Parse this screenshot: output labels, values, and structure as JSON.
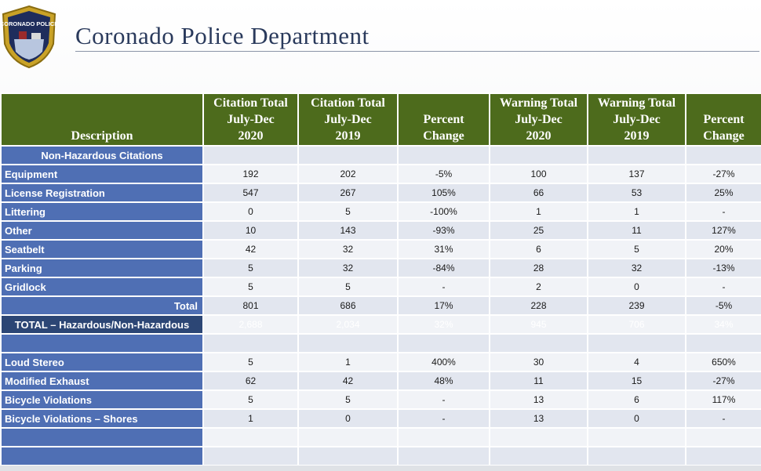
{
  "header": {
    "badge_text": "CORONADO POLICE",
    "title": "Coronado Police Department"
  },
  "table": {
    "columns": [
      {
        "lines": [
          "Description"
        ]
      },
      {
        "lines": [
          "Citation Total",
          "July-Dec",
          "2020"
        ]
      },
      {
        "lines": [
          "Citation Total",
          "July-Dec",
          "2019"
        ]
      },
      {
        "lines": [
          "Percent",
          "Change"
        ]
      },
      {
        "lines": [
          "Warning Total",
          "July-Dec",
          "2020"
        ]
      },
      {
        "lines": [
          "Warning Total",
          "July-Dec",
          "2019"
        ]
      },
      {
        "lines": [
          "Percent",
          "Change"
        ]
      }
    ],
    "rows": [
      {
        "label": "Non-Hazardous Citations",
        "align": "center",
        "cells": [
          "",
          "",
          "",
          "",
          "",
          ""
        ]
      },
      {
        "label": "Equipment",
        "cells": [
          "192",
          "202",
          "-5%",
          "100",
          "137",
          "-27%"
        ]
      },
      {
        "label": "License Registration",
        "cells": [
          "547",
          "267",
          "105%",
          "66",
          "53",
          "25%"
        ]
      },
      {
        "label": "Littering",
        "cells": [
          "0",
          "5",
          "-100%",
          "1",
          "1",
          "-"
        ]
      },
      {
        "label": "Other",
        "cells": [
          "10",
          "143",
          "-93%",
          "25",
          "11",
          "127%"
        ]
      },
      {
        "label": "Seatbelt",
        "cells": [
          "42",
          "32",
          "31%",
          "6",
          "5",
          "20%"
        ]
      },
      {
        "label": "Parking",
        "cells": [
          "5",
          "32",
          "-84%",
          "28",
          "32",
          "-13%"
        ]
      },
      {
        "label": "Gridlock",
        "cells": [
          "5",
          "5",
          "-",
          "2",
          "0",
          "-"
        ]
      },
      {
        "label": "Total",
        "align": "right",
        "cells": [
          "801",
          "686",
          "17%",
          "228",
          "239",
          "-5%"
        ]
      },
      {
        "label": "TOTAL – Hazardous/Non-Hazardous",
        "align": "center",
        "grand": true,
        "cells": [
          "2,688",
          "2,034",
          "32%",
          "945",
          "706",
          "34%"
        ]
      },
      {
        "label": "",
        "cells": [
          "",
          "",
          "",
          "",
          "",
          ""
        ]
      },
      {
        "label": "Loud Stereo",
        "cells": [
          "5",
          "1",
          "400%",
          "30",
          "4",
          "650%"
        ]
      },
      {
        "label": "Modified Exhaust",
        "cells": [
          "62",
          "42",
          "48%",
          "11",
          "15",
          "-27%"
        ]
      },
      {
        "label": "Bicycle Violations",
        "cells": [
          "5",
          "5",
          "-",
          "13",
          "6",
          "117%"
        ]
      },
      {
        "label": "Bicycle Violations – Shores",
        "cells": [
          "1",
          "0",
          "-",
          "13",
          "0",
          "-"
        ]
      },
      {
        "label": "",
        "cells": [
          "",
          "",
          "",
          "",
          "",
          ""
        ]
      },
      {
        "label": "",
        "cells": [
          "",
          "",
          "",
          "",
          "",
          ""
        ]
      }
    ]
  },
  "colors": {
    "header_green": "#4d6b1c",
    "description_blue": "#4f6fb4",
    "grand_total_navy": "#2c4675",
    "title_navy": "#2a3a5c"
  }
}
